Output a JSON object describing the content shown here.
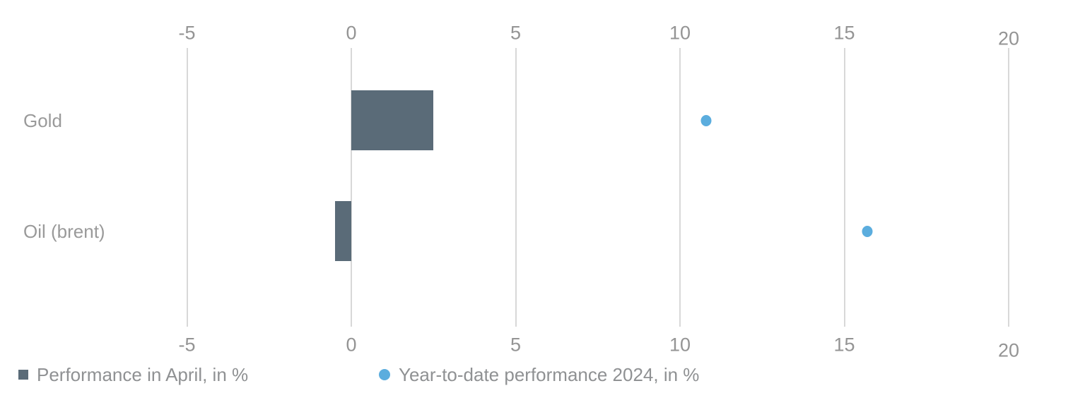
{
  "chart_data": {
    "type": "bar",
    "orientation": "horizontal",
    "categories": [
      "Gold",
      "Oil (brent)"
    ],
    "series": [
      {
        "name": "Performance in April, in %",
        "type": "bar",
        "marker": "square",
        "color": "#5a6b78",
        "values": [
          2.5,
          -0.5
        ]
      },
      {
        "name": "Year-to-date performance 2024, in %",
        "type": "point",
        "marker": "circle",
        "color": "#5badde",
        "values": [
          10.8,
          15.7
        ]
      }
    ],
    "x_axis": {
      "min": -5,
      "max": 20,
      "ticks": [
        -5,
        0,
        5,
        10,
        15,
        20
      ],
      "tick_labels": [
        "-5",
        "0",
        "5",
        "10",
        "15",
        "20"
      ],
      "label_position": "top and bottom",
      "grid": true
    },
    "legend_position": "bottom"
  },
  "styles": {
    "background_color": "#ffffff",
    "grid_color": "#d8d8d8",
    "tick_label_color": "#949494",
    "category_label_color": "#9a9a9a",
    "legend_text_color": "#8f9193"
  }
}
